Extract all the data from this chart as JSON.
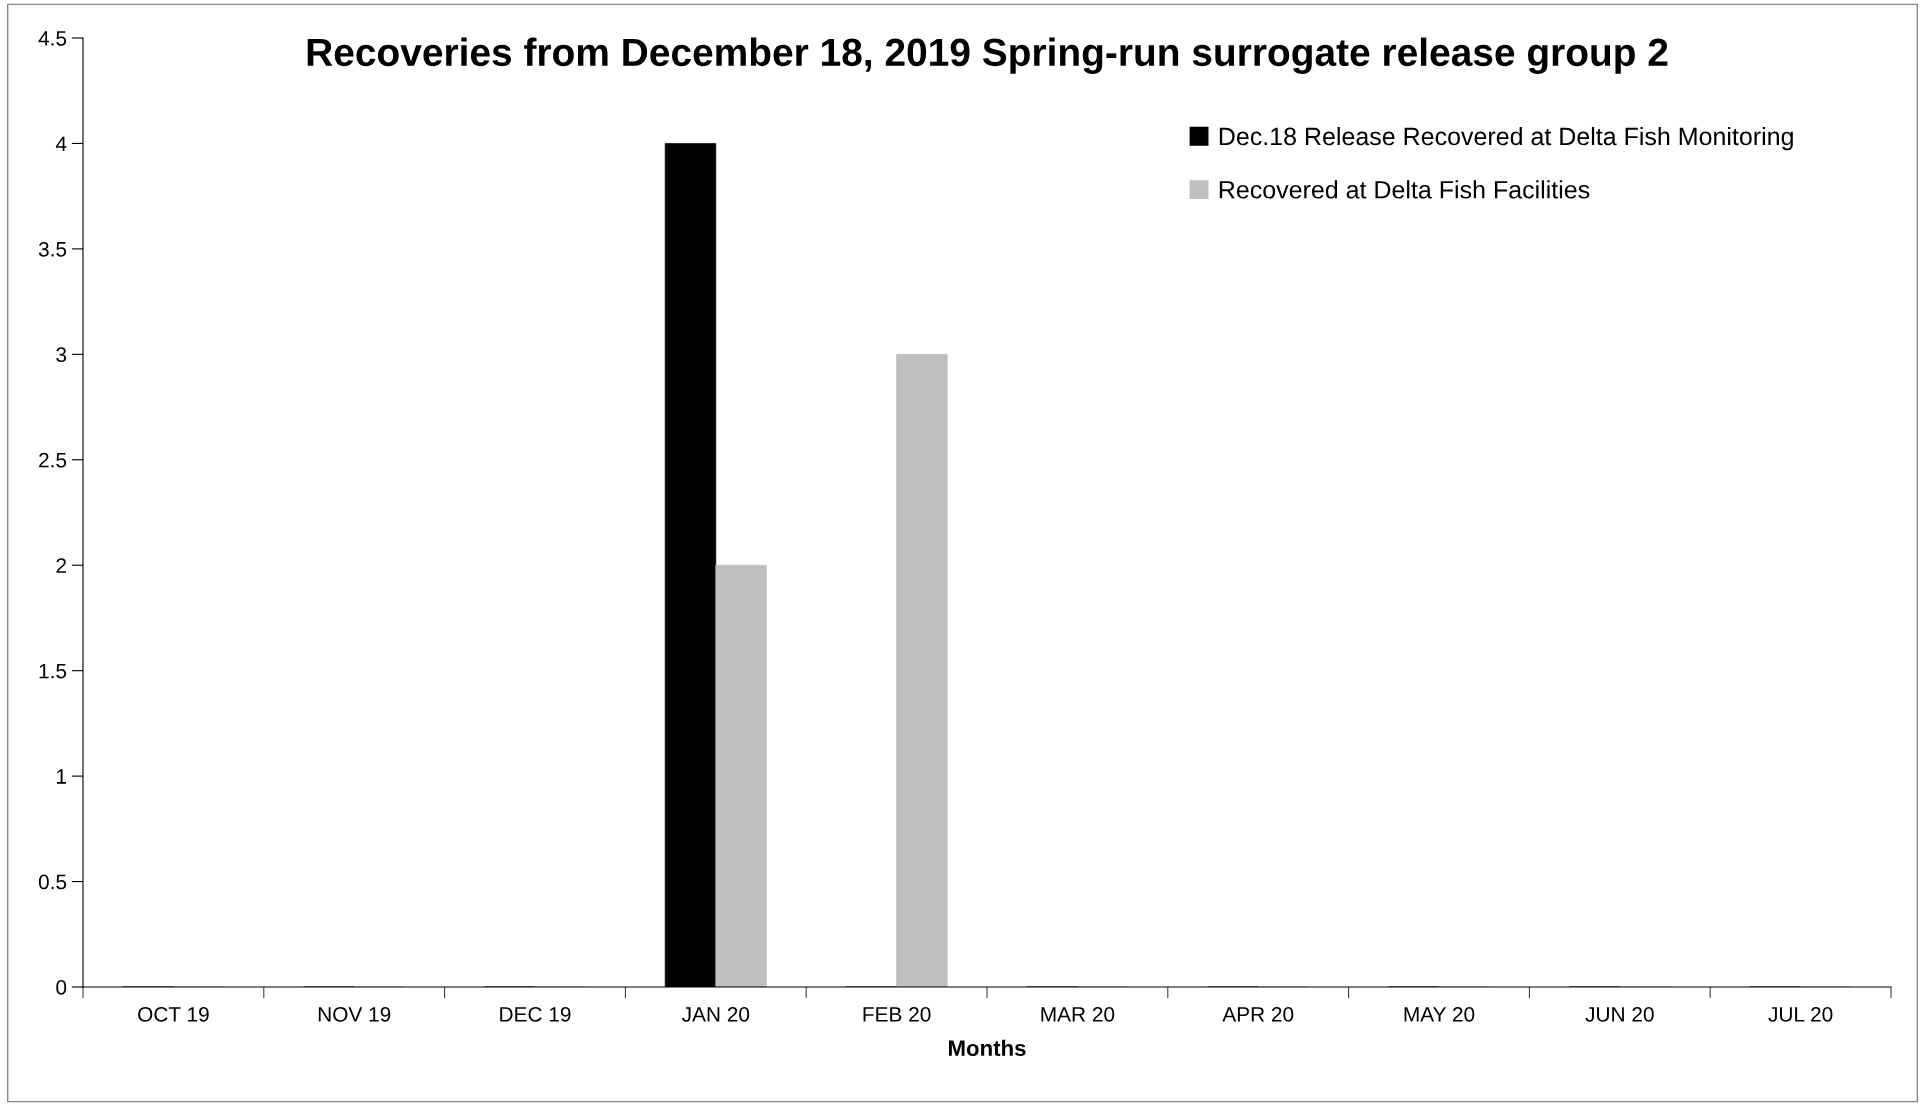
{
  "chart_data": {
    "type": "bar",
    "title": "Recoveries from December 18, 2019 Spring-run surrogate release group 2",
    "xlabel": "Months",
    "categories": [
      "OCT 19",
      "NOV 19",
      "DEC 19",
      "JAN 20",
      "FEB 20",
      "MAR 20",
      "APR 20",
      "MAY 20",
      "JUN 20",
      "JUL 20"
    ],
    "series": [
      {
        "name": "Dec.18 Release Recovered at Delta Fish Monitoring",
        "color": "#000000",
        "values": [
          0,
          0,
          0,
          4,
          0,
          0,
          0,
          0,
          0,
          0
        ]
      },
      {
        "name": "Recovered at Delta Fish Facilities",
        "color": "#bfbfbf",
        "values": [
          0,
          0,
          0,
          2,
          3,
          0,
          0,
          0,
          0,
          0
        ]
      }
    ],
    "ylim": [
      0,
      4.5
    ],
    "yticks": [
      0,
      0.5,
      1,
      1.5,
      2,
      2.5,
      3,
      3.5,
      4,
      4.5
    ],
    "grid": false,
    "legend": "top right"
  }
}
